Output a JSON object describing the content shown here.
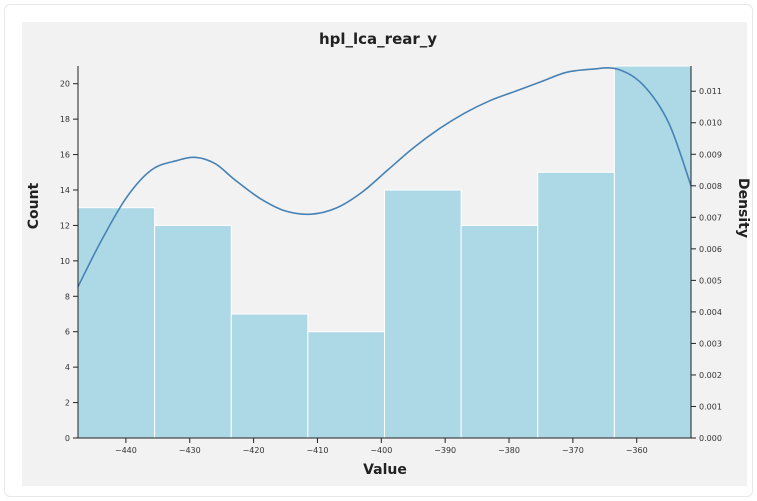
{
  "chart_data": {
    "type": "bar",
    "title": "hpl_lca_rear_y",
    "xlabel": "Value",
    "ylabel": "Count",
    "y2label": "Density",
    "bin_edges": [
      -447.5,
      -435.5,
      -423.5,
      -411.5,
      -399.5,
      -387.5,
      -375.5,
      -363.5,
      -351.5
    ],
    "values": [
      13,
      12,
      7,
      6,
      14,
      12,
      15,
      21
    ],
    "xlim": [
      -447.5,
      -351.5
    ],
    "ylim": [
      0,
      21
    ],
    "y2lim": [
      0,
      0.0118
    ],
    "x_ticks": [
      -440,
      -430,
      -420,
      -410,
      -400,
      -390,
      -380,
      -370,
      -360
    ],
    "y_ticks": [
      0,
      2,
      4,
      6,
      8,
      10,
      12,
      14,
      16,
      18,
      20
    ],
    "y2_ticks": [
      0.0,
      0.001,
      0.002,
      0.003,
      0.004,
      0.005,
      0.006,
      0.007,
      0.008,
      0.009,
      0.01,
      0.011
    ],
    "density_curve": {
      "x": [
        -447.5,
        -444,
        -440,
        -436,
        -432,
        -429,
        -426,
        -423,
        -419,
        -415,
        -411,
        -407,
        -403,
        -399,
        -395,
        -391,
        -387,
        -383,
        -379,
        -375,
        -371,
        -367,
        -363,
        -359,
        -355,
        -351.5
      ],
      "y": [
        0.0048,
        0.0062,
        0.0076,
        0.0085,
        0.0088,
        0.0089,
        0.0087,
        0.0082,
        0.0076,
        0.0072,
        0.0071,
        0.0073,
        0.0078,
        0.0085,
        0.0092,
        0.0098,
        0.0103,
        0.0107,
        0.011,
        0.0113,
        0.0116,
        0.0117,
        0.0117,
        0.0112,
        0.01,
        0.008
      ]
    },
    "grid": false,
    "legend": "none",
    "colors": {
      "bar_fill": "#add8e6",
      "bar_stroke": "#ffffff",
      "curve": "#4682b4",
      "plot_background": "#f2f2f2"
    }
  }
}
